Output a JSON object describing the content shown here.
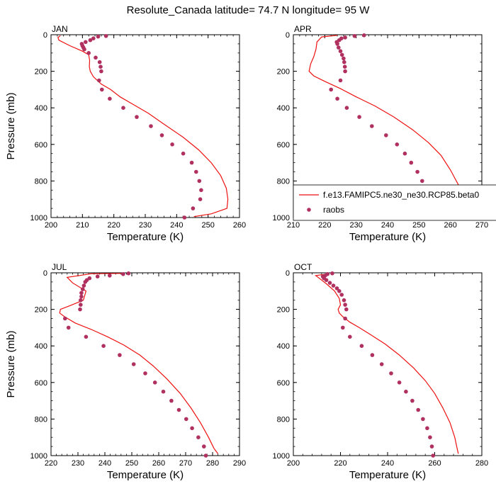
{
  "title": "Resolute_Canada  latitude= 74.7 N longitude= 95 W",
  "legend": {
    "model_label": "f.e13.FAMIPC5.ne30_ne30.RCP85.beta0",
    "obs_label": "raobs",
    "panel": "APR"
  },
  "colors": {
    "model_line": "#ee1111",
    "obs_marker": "#b03060"
  },
  "chart_data": [
    {
      "type": "line",
      "panel": "JAN",
      "xlabel": "Temperature (K)",
      "ylabel": "Pressure (mb)",
      "xlim": [
        200,
        260
      ],
      "ylim": [
        1000,
        0
      ],
      "xticks": [
        200,
        210,
        220,
        230,
        240,
        250,
        260
      ],
      "yticks": [
        0,
        200,
        400,
        600,
        800,
        1000
      ],
      "series": [
        {
          "name": "f.e13.FAMIPC5.ne30_ne30.RCP85.beta0",
          "kind": "line",
          "points": [
            [
              203,
              5
            ],
            [
              202.2,
              15
            ],
            [
              202.5,
              30
            ],
            [
              206,
              60
            ],
            [
              210,
              90
            ],
            [
              212,
              110
            ],
            [
              212.3,
              140
            ],
            [
              212.2,
              175
            ],
            [
              212.5,
              200
            ],
            [
              213.5,
              230
            ],
            [
              216,
              270
            ],
            [
              219,
              300
            ],
            [
              222,
              340
            ],
            [
              226,
              380
            ],
            [
              231,
              430
            ],
            [
              236,
              490
            ],
            [
              242,
              560
            ],
            [
              247,
              630
            ],
            [
              251,
              700
            ],
            [
              254,
              770
            ],
            [
              255.8,
              840
            ],
            [
              256.3,
              900
            ],
            [
              256,
              950
            ],
            [
              251,
              980
            ],
            [
              245.5,
              995
            ]
          ]
        },
        {
          "name": "raobs",
          "kind": "scatter",
          "points": [
            [
              217.5,
              7
            ],
            [
              215,
              10
            ],
            [
              213.5,
              20
            ],
            [
              212.5,
              30
            ],
            [
              211,
              40
            ],
            [
              209.8,
              50
            ],
            [
              210,
              60
            ],
            [
              210.3,
              70
            ],
            [
              210.6,
              80
            ],
            [
              212,
              100
            ],
            [
              214.2,
              125
            ],
            [
              215.5,
              150
            ],
            [
              215.8,
              175
            ],
            [
              216,
              200
            ],
            [
              215.3,
              250
            ],
            [
              216.2,
              300
            ],
            [
              218.7,
              350
            ],
            [
              223,
              400
            ],
            [
              227.3,
              450
            ],
            [
              231.8,
              500
            ],
            [
              235.3,
              550
            ],
            [
              238.6,
              600
            ],
            [
              242.1,
              650
            ],
            [
              244.8,
              700
            ],
            [
              246.2,
              750
            ],
            [
              247.2,
              800
            ],
            [
              247.8,
              850
            ],
            [
              247.5,
              900
            ],
            [
              245.2,
              950
            ],
            [
              242.5,
              1000
            ]
          ]
        }
      ]
    },
    {
      "type": "line",
      "panel": "APR",
      "xlabel": "Temperature (K)",
      "ylabel": "",
      "xlim": [
        210,
        270
      ],
      "ylim": [
        1000,
        0
      ],
      "xticks": [
        210,
        220,
        230,
        240,
        250,
        260,
        270
      ],
      "yticks": [
        0,
        200,
        400,
        600,
        800,
        1000
      ],
      "series": [
        {
          "name": "f.e13.FAMIPC5.ne30_ne30.RCP85.beta0",
          "kind": "line",
          "points": [
            [
              224,
              3
            ],
            [
              219,
              12
            ],
            [
              217.5,
              40
            ],
            [
              217.2,
              80
            ],
            [
              216.5,
              120
            ],
            [
              215.5,
              160
            ],
            [
              215,
              200
            ],
            [
              216.5,
              225
            ],
            [
              220,
              255
            ],
            [
              225,
              295
            ],
            [
              230,
              340
            ],
            [
              236,
              390
            ],
            [
              242,
              450
            ],
            [
              248,
              520
            ],
            [
              253,
              590
            ],
            [
              257,
              660
            ],
            [
              260,
              740
            ],
            [
              262.5,
              820
            ],
            [
              263.5,
              900
            ],
            [
              262.8,
              940
            ],
            [
              260,
              965
            ],
            [
              256,
              990
            ]
          ]
        },
        {
          "name": "raobs",
          "kind": "scatter",
          "points": [
            [
              232.5,
              3
            ],
            [
              229.5,
              7
            ],
            [
              226.5,
              15
            ],
            [
              225.3,
              20
            ],
            [
              224.6,
              30
            ],
            [
              223.8,
              40
            ],
            [
              224,
              50
            ],
            [
              224.4,
              70
            ],
            [
              225,
              90
            ],
            [
              225.5,
              110
            ],
            [
              226,
              130
            ],
            [
              226.2,
              150
            ],
            [
              226.4,
              175
            ],
            [
              226.5,
              200
            ],
            [
              225,
              250
            ],
            [
              222,
              300
            ],
            [
              224,
              350
            ],
            [
              227,
              400
            ],
            [
              231,
              450
            ],
            [
              235,
              500
            ],
            [
              239.5,
              550
            ],
            [
              243,
              600
            ],
            [
              245.5,
              650
            ],
            [
              247.5,
              700
            ],
            [
              249.5,
              750
            ],
            [
              251,
              800
            ],
            [
              252.5,
              850
            ],
            [
              253.5,
              900
            ],
            [
              252.8,
              950
            ],
            [
              251,
              1000
            ]
          ]
        }
      ]
    },
    {
      "type": "line",
      "panel": "JUL",
      "xlabel": "Temperature (K)",
      "ylabel": "Pressure (mb)",
      "xlim": [
        220,
        290
      ],
      "ylim": [
        1000,
        0
      ],
      "xticks": [
        220,
        230,
        240,
        250,
        260,
        270,
        280,
        290
      ],
      "yticks": [
        0,
        200,
        400,
        600,
        800,
        1000
      ],
      "series": [
        {
          "name": "f.e13.FAMIPC5.ne30_ne30.RCP85.beta0",
          "kind": "line",
          "points": [
            [
              247,
              3
            ],
            [
              235,
              5
            ],
            [
              226,
              25
            ],
            [
              228,
              55
            ],
            [
              233,
              100
            ],
            [
              232,
              150
            ],
            [
              227,
              180
            ],
            [
              223.5,
              200
            ],
            [
              223.2,
              220
            ],
            [
              225,
              240
            ],
            [
              229,
              275
            ],
            [
              235,
              310
            ],
            [
              241,
              350
            ],
            [
              247,
              395
            ],
            [
              253,
              450
            ],
            [
              258,
              510
            ],
            [
              263,
              580
            ],
            [
              268,
              660
            ],
            [
              272,
              740
            ],
            [
              275.5,
              820
            ],
            [
              278.5,
              900
            ],
            [
              280.5,
              960
            ],
            [
              282,
              990
            ]
          ]
        },
        {
          "name": "raobs",
          "kind": "scatter",
          "points": [
            [
              248.8,
              3
            ],
            [
              246.8,
              7
            ],
            [
              241.8,
              15
            ],
            [
              237.3,
              20
            ],
            [
              234.3,
              30
            ],
            [
              233.3,
              40
            ],
            [
              232.7,
              50
            ],
            [
              232.2,
              70
            ],
            [
              231.8,
              90
            ],
            [
              231.3,
              110
            ],
            [
              231.3,
              130
            ],
            [
              231,
              150
            ],
            [
              231,
              175
            ],
            [
              230.8,
              200
            ],
            [
              225.2,
              250
            ],
            [
              226.5,
              300
            ],
            [
              233,
              350
            ],
            [
              239.5,
              400
            ],
            [
              245.5,
              450
            ],
            [
              250.7,
              500
            ],
            [
              255,
              550
            ],
            [
              258.6,
              600
            ],
            [
              261.7,
              650
            ],
            [
              264.7,
              700
            ],
            [
              267.5,
              750
            ],
            [
              270.2,
              800
            ],
            [
              272.4,
              850
            ],
            [
              274.7,
              900
            ],
            [
              276.8,
              950
            ],
            [
              277.5,
              1000
            ]
          ]
        }
      ]
    },
    {
      "type": "line",
      "panel": "OCT",
      "xlabel": "Temperature (K)",
      "ylabel": "",
      "xlim": [
        200,
        280
      ],
      "ylim": [
        1000,
        0
      ],
      "xticks": [
        200,
        220,
        240,
        260,
        280
      ],
      "yticks": [
        0,
        200,
        400,
        600,
        800,
        1000
      ],
      "series": [
        {
          "name": "f.e13.FAMIPC5.ne30_ne30.RCP85.beta0",
          "kind": "line",
          "points": [
            [
              215,
              5
            ],
            [
              209.5,
              15
            ],
            [
              211,
              30
            ],
            [
              214,
              60
            ],
            [
              217.5,
              100
            ],
            [
              219.5,
              140
            ],
            [
              220,
              175
            ],
            [
              219,
              200
            ],
            [
              219.5,
              220
            ],
            [
              221,
              240
            ],
            [
              224,
              270
            ],
            [
              228,
              300
            ],
            [
              233,
              340
            ],
            [
              239,
              390
            ],
            [
              245,
              450
            ],
            [
              251,
              520
            ],
            [
              256,
              590
            ],
            [
              260,
              660
            ],
            [
              263.5,
              740
            ],
            [
              266.5,
              820
            ],
            [
              268.5,
              900
            ],
            [
              269.5,
              960
            ],
            [
              270,
              990
            ]
          ]
        },
        {
          "name": "raobs",
          "kind": "scatter",
          "points": [
            [
              216.5,
              3
            ],
            [
              214.5,
              7
            ],
            [
              213.5,
              15
            ],
            [
              212.5,
              20
            ],
            [
              213,
              30
            ],
            [
              214,
              40
            ],
            [
              215.5,
              55
            ],
            [
              217,
              70
            ],
            [
              218.5,
              85
            ],
            [
              219.5,
              100
            ],
            [
              220.5,
              120
            ],
            [
              221.5,
              150
            ],
            [
              222,
              175
            ],
            [
              222.5,
              200
            ],
            [
              222,
              250
            ],
            [
              221,
              300
            ],
            [
              224,
              350
            ],
            [
              229,
              400
            ],
            [
              233.5,
              450
            ],
            [
              237.5,
              500
            ],
            [
              241.5,
              550
            ],
            [
              245,
              600
            ],
            [
              247.8,
              650
            ],
            [
              250.5,
              700
            ],
            [
              253,
              750
            ],
            [
              255,
              800
            ],
            [
              256.8,
              850
            ],
            [
              258,
              900
            ],
            [
              258.8,
              950
            ],
            [
              259.3,
              1000
            ]
          ]
        }
      ]
    }
  ]
}
